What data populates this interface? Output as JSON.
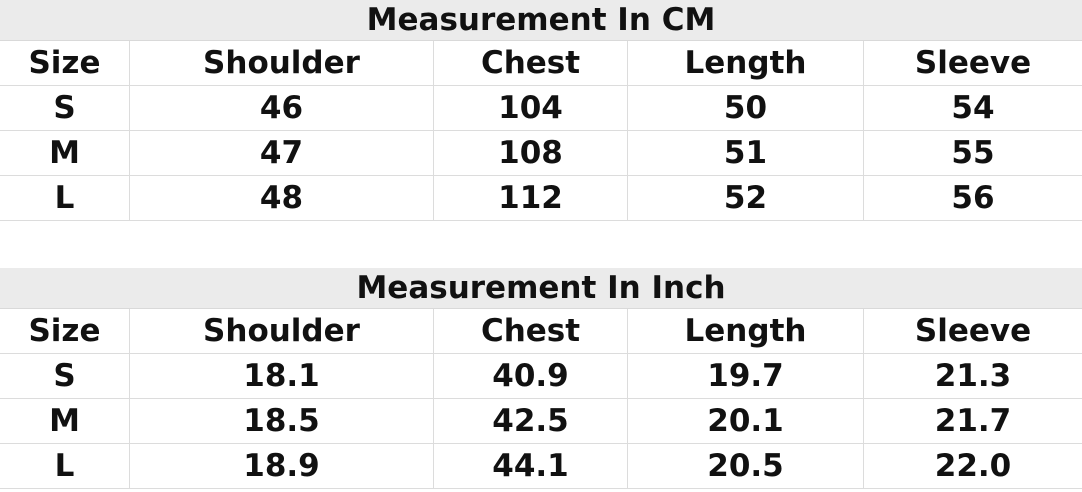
{
  "columns": [
    "Size",
    "Shoulder",
    "Chest",
    "Length",
    "Sleeve"
  ],
  "tables": [
    {
      "title": "Measurement In CM",
      "rows": [
        [
          "S",
          "46",
          "104",
          "50",
          "54"
        ],
        [
          "M",
          "47",
          "108",
          "51",
          "55"
        ],
        [
          "L",
          "48",
          "112",
          "52",
          "56"
        ]
      ]
    },
    {
      "title": "Measurement In Inch",
      "rows": [
        [
          "S",
          "18.1",
          "40.9",
          "19.7",
          "21.3"
        ],
        [
          "M",
          "18.5",
          "42.5",
          "20.1",
          "21.7"
        ],
        [
          "L",
          "18.9",
          "44.1",
          "20.5",
          "22.0"
        ]
      ]
    }
  ]
}
